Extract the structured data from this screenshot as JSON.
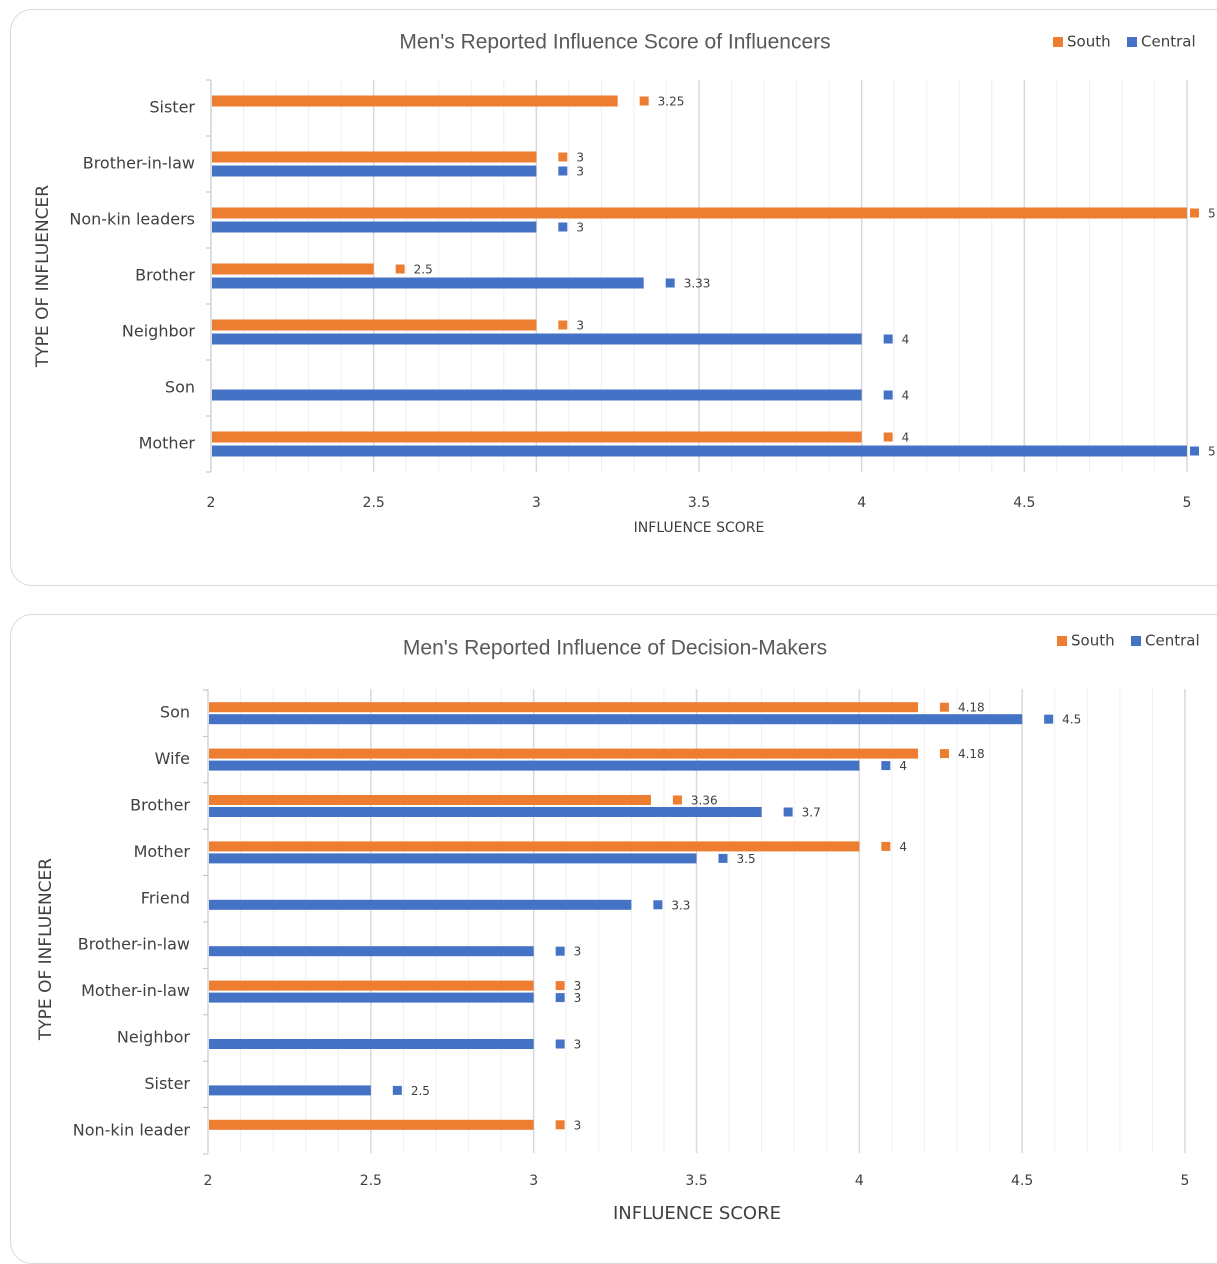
{
  "chart_data": [
    {
      "type": "bar",
      "orientation": "horizontal",
      "title": "Men's Reported Influence Score of Influencers",
      "xlabel": "INFLUENCE SCORE",
      "ylabel": "TYPE OF INFLUENCER",
      "xlim": [
        2,
        5
      ],
      "x_ticks": [
        "2",
        "2.5",
        "3",
        "3.5",
        "4",
        "4.5",
        "5"
      ],
      "legend_position": "top-right",
      "grid": true,
      "categories": [
        "Sister",
        "Brother-in-law",
        "Non-kin leaders",
        "Brother",
        "Neighbor",
        "Son",
        "Mother"
      ],
      "series": [
        {
          "name": "South",
          "color": "#ED7D31",
          "values": [
            3.25,
            3,
            5,
            2.5,
            3,
            null,
            4
          ]
        },
        {
          "name": "Central",
          "color": "#4472C4",
          "values": [
            null,
            3,
            3,
            3.33,
            4,
            4,
            5
          ]
        }
      ]
    },
    {
      "type": "bar",
      "orientation": "horizontal",
      "title": "Men's Reported Influence of Decision-Makers",
      "xlabel": "INFLUENCE SCORE",
      "ylabel": "TYPE OF INFLUENCER",
      "xlim": [
        2,
        5
      ],
      "x_ticks": [
        "2",
        "2.5",
        "3",
        "3.5",
        "4",
        "4.5",
        "5"
      ],
      "legend_position": "top-right",
      "grid": true,
      "categories": [
        "Son",
        "Wife",
        "Brother",
        "Mother",
        "Friend",
        "Brother-in-law",
        "Mother-in-law",
        "Neighbor",
        "Sister",
        "Non-kin leader"
      ],
      "series": [
        {
          "name": "South",
          "color": "#ED7D31",
          "values": [
            4.18,
            4.18,
            3.36,
            4,
            null,
            null,
            3,
            null,
            null,
            3
          ]
        },
        {
          "name": "Central",
          "color": "#4472C4",
          "values": [
            4.5,
            4,
            3.7,
            3.5,
            3.3,
            3,
            3,
            3,
            2.5,
            null
          ]
        }
      ]
    }
  ]
}
